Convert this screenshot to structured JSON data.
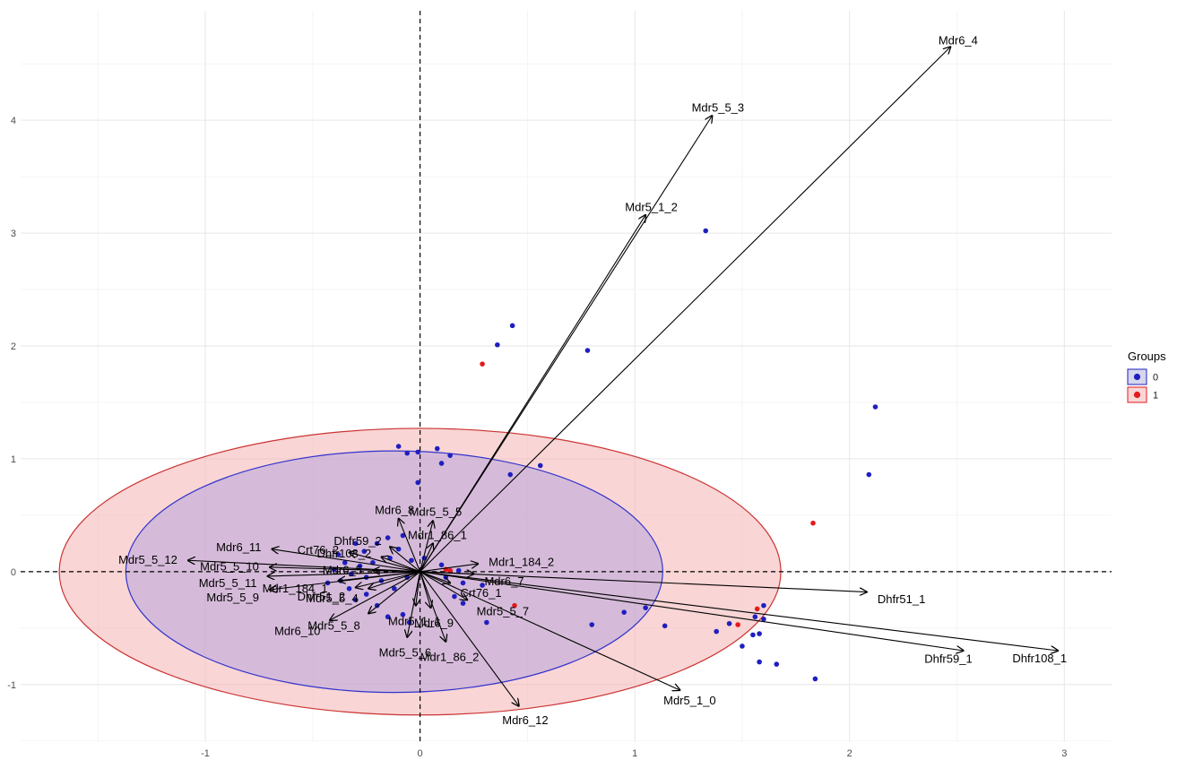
{
  "chart_data": {
    "type": "scatter",
    "subtype": "pca-biplot",
    "title": "",
    "xlabel": "",
    "ylabel": "",
    "xlim": [
      -1.86,
      3.22
    ],
    "ylim": [
      -1.51,
      4.97
    ],
    "x_ticks": [
      -1,
      0,
      1,
      2,
      3
    ],
    "y_ticks": [
      -1,
      0,
      1,
      2,
      3,
      4
    ],
    "x_tick_labels": [
      "-1",
      "0",
      "1",
      "2",
      "3"
    ],
    "y_tick_labels": [
      "-1",
      "0",
      "1",
      "2",
      "3",
      "4"
    ],
    "grid": true,
    "reference_lines": {
      "x": 0,
      "y": 0,
      "style": "dashed"
    },
    "legend": {
      "title": "Groups",
      "position": "right",
      "entries": [
        {
          "label": "0",
          "color": "#1f1fbf",
          "fill": "#d6d6ee"
        },
        {
          "label": "1",
          "color": "#e41a1c",
          "fill": "#f9d6d6"
        }
      ]
    },
    "ellipses": [
      {
        "group": "1",
        "cx": 0.0,
        "cy": 0.0,
        "rx": 1.68,
        "ry": 1.27,
        "stroke": "#cc3333",
        "fill": "#f4b3b3"
      },
      {
        "group": "0",
        "cx": -0.12,
        "cy": 0.0,
        "rx": 1.25,
        "ry": 1.07,
        "stroke": "#3333cc",
        "fill": "#b8a6dd"
      }
    ],
    "series": [
      {
        "name": "0",
        "color": "#1f1fbf",
        "points": [
          [
            1.33,
            3.02
          ],
          [
            0.43,
            2.18
          ],
          [
            0.36,
            2.01
          ],
          [
            0.78,
            1.96
          ],
          [
            2.12,
            1.46
          ],
          [
            2.09,
            0.86
          ],
          [
            -0.1,
            1.11
          ],
          [
            -0.06,
            1.05
          ],
          [
            -0.01,
            1.06
          ],
          [
            0.08,
            1.09
          ],
          [
            0.14,
            1.03
          ],
          [
            0.1,
            0.96
          ],
          [
            0.42,
            0.86
          ],
          [
            0.56,
            0.94
          ],
          [
            -0.01,
            0.79
          ],
          [
            0.8,
            -0.47
          ],
          [
            0.95,
            -0.36
          ],
          [
            1.05,
            -0.32
          ],
          [
            1.14,
            -0.48
          ],
          [
            1.38,
            -0.53
          ],
          [
            1.44,
            -0.46
          ],
          [
            1.5,
            -0.66
          ],
          [
            1.55,
            -0.56
          ],
          [
            1.58,
            -0.55
          ],
          [
            1.56,
            -0.4
          ],
          [
            1.6,
            -0.42
          ],
          [
            1.6,
            -0.3
          ],
          [
            1.58,
            -0.8
          ],
          [
            1.66,
            -0.82
          ],
          [
            1.84,
            -0.95
          ],
          [
            0.31,
            -0.45
          ],
          [
            0.2,
            -0.28
          ],
          [
            0.16,
            -0.22
          ],
          [
            0.29,
            -0.12
          ],
          [
            0.2,
            -0.1
          ],
          [
            0.12,
            -0.05
          ],
          [
            0.1,
            0.06
          ],
          [
            0.18,
            0.01
          ],
          [
            -0.05,
            -0.45
          ],
          [
            -0.08,
            -0.38
          ],
          [
            -0.15,
            -0.4
          ],
          [
            -0.2,
            -0.3
          ],
          [
            -0.25,
            -0.2
          ],
          [
            -0.3,
            -0.25
          ],
          [
            -0.33,
            -0.15
          ],
          [
            -0.37,
            -0.08
          ],
          [
            -0.4,
            0.02
          ],
          [
            -0.38,
            0.15
          ],
          [
            -0.3,
            0.25
          ],
          [
            -0.2,
            0.25
          ],
          [
            -0.15,
            0.3
          ],
          [
            -0.1,
            0.2
          ],
          [
            -0.22,
            0.08
          ],
          [
            -0.28,
            0.05
          ],
          [
            -0.18,
            -0.08
          ],
          [
            -0.12,
            -0.15
          ],
          [
            -0.06,
            -0.05
          ],
          [
            -0.04,
            0.1
          ],
          [
            -0.14,
            0.12
          ],
          [
            -0.25,
            -0.05
          ],
          [
            -0.32,
            -0.02
          ],
          [
            -0.35,
            0.08
          ],
          [
            -0.08,
            0.32
          ],
          [
            0.02,
            0.12
          ],
          [
            -0.43,
            -0.1
          ],
          [
            -0.26,
            0.18
          ]
        ]
      },
      {
        "name": "1",
        "color": "#e41a1c",
        "points": [
          [
            0.29,
            1.84
          ],
          [
            1.83,
            0.43
          ],
          [
            1.57,
            -0.33
          ],
          [
            1.48,
            -0.47
          ],
          [
            0.44,
            -0.3
          ],
          [
            0.12,
            0.02
          ],
          [
            0.14,
            0.01
          ]
        ]
      }
    ],
    "loadings": [
      {
        "label": "Mdr6_4",
        "x": 2.47,
        "y": 4.65
      },
      {
        "label": "Mdr5_5_3",
        "x": 1.36,
        "y": 4.04
      },
      {
        "label": "Mdr5_1_2",
        "x": 1.05,
        "y": 3.16
      },
      {
        "label": "Dhfr51_1",
        "x": 2.08,
        "y": -0.18
      },
      {
        "label": "Dhfr59_1",
        "x": 2.53,
        "y": -0.7
      },
      {
        "label": "Dhfr108_1",
        "x": 2.97,
        "y": -0.7
      },
      {
        "label": "Mdr5_1_0",
        "x": 1.21,
        "y": -1.05
      },
      {
        "label": "Mdr6_12",
        "x": 0.46,
        "y": -1.19
      },
      {
        "label": "Mdr5_5_12",
        "x": -1.08,
        "y": 0.1
      },
      {
        "label": "Mdr6_11",
        "x": -0.69,
        "y": 0.2
      },
      {
        "label": "Mdr5_5_10",
        "x": -0.7,
        "y": 0.04
      },
      {
        "label": "Mdr5_5_11",
        "x": -0.71,
        "y": -0.04
      },
      {
        "label": "Mdr5_5_9",
        "x": -0.7,
        "y": -0.16
      },
      {
        "label": "Mdr6_10",
        "x": -0.42,
        "y": -0.43
      },
      {
        "label": "Mdr5_5_8",
        "x": -0.24,
        "y": -0.37
      },
      {
        "label": "Mdr5_5_6",
        "x": -0.06,
        "y": -0.58
      },
      {
        "label": "Mdr1_86_2",
        "x": 0.12,
        "y": -0.62
      },
      {
        "label": "Mdr6_9",
        "x": 0.05,
        "y": -0.32
      },
      {
        "label": "Mdr5_5_7",
        "x": 0.22,
        "y": -0.25
      },
      {
        "label": "Crt76_1",
        "x": 0.14,
        "y": -0.1
      },
      {
        "label": "Mdr6_7",
        "x": 0.25,
        "y": -0.02
      },
      {
        "label": "Mdr1_184_2",
        "x": 0.27,
        "y": 0.07
      },
      {
        "label": "Mdr1_86_1",
        "x": 0.06,
        "y": 0.25
      },
      {
        "label": "Mdr5_5_5",
        "x": 0.06,
        "y": 0.45
      },
      {
        "label": "Mdr6_8",
        "x": -0.1,
        "y": 0.47
      },
      {
        "label": "Dhfr59_2",
        "x": -0.14,
        "y": 0.22
      },
      {
        "label": "Dhfr108_2",
        "x": -0.18,
        "y": 0.13
      },
      {
        "label": "Crt76_2",
        "x": -0.33,
        "y": 0.17
      },
      {
        "label": "Dhfr51_2",
        "x": -0.3,
        "y": -0.14
      },
      {
        "label": "Mdr1_184_1",
        "x": -0.38,
        "y": -0.08
      },
      {
        "label": "Mdr5_5_4",
        "x": -0.24,
        "y": -0.15
      },
      {
        "label": "Mdr6_5",
        "x": -0.22,
        "y": 0.01
      },
      {
        "label": "Mdr5_1_1",
        "x": -0.02,
        "y": -0.3
      }
    ]
  }
}
